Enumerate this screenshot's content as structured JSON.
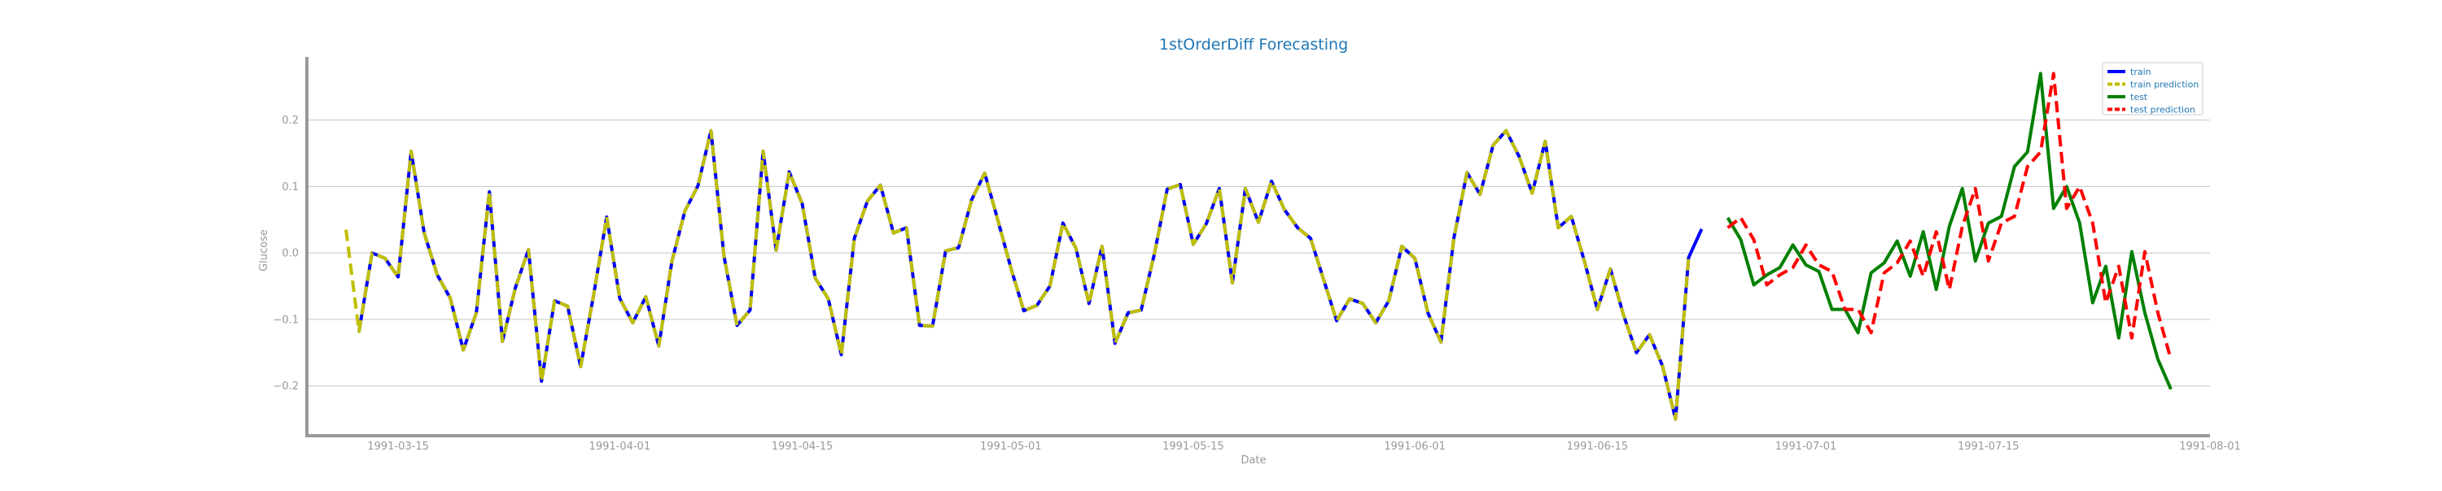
{
  "chart_data": {
    "type": "line",
    "title": "1stOrderDiff Forecasting",
    "xlabel": "Date",
    "ylabel": "Glucose",
    "xlim": [
      "1991-03-08",
      "1991-08-01"
    ],
    "ylim": [
      -0.275,
      0.295
    ],
    "grid": "horizontal",
    "legend_position": "top-right",
    "x_ticks": [
      "1991-03-15",
      "1991-04-01",
      "1991-04-15",
      "1991-05-01",
      "1991-05-15",
      "1991-06-01",
      "1991-06-15",
      "1991-07-01",
      "1991-07-15",
      "1991-08-01"
    ],
    "y_ticks": [
      -0.2,
      -0.1,
      0.0,
      0.1,
      0.2
    ],
    "y_tick_labels": [
      "−0.2",
      "−0.1",
      "0.0",
      "0.1",
      "0.2"
    ],
    "colors": {
      "train": "#0000ff",
      "train_prediction": "#bfbf00",
      "test": "#008000",
      "test_prediction": "#ff0000"
    },
    "series": [
      {
        "name": "train",
        "start": "1991-03-12",
        "values": [
          -0.118,
          0.0,
          -0.008,
          -0.036,
          0.153,
          0.03,
          -0.033,
          -0.068,
          -0.146,
          -0.09,
          0.092,
          -0.133,
          -0.052,
          0.005,
          -0.193,
          -0.072,
          -0.08,
          -0.171,
          -0.063,
          0.054,
          -0.068,
          -0.105,
          -0.066,
          -0.14,
          -0.013,
          0.063,
          0.101,
          0.184,
          -0.005,
          -0.109,
          -0.086,
          0.153,
          0.004,
          0.122,
          0.074,
          -0.038,
          -0.069,
          -0.153,
          0.022,
          0.078,
          0.102,
          0.03,
          0.038,
          -0.109,
          -0.11,
          0.003,
          0.008,
          0.08,
          0.12,
          0.05,
          -0.022,
          -0.087,
          -0.079,
          -0.05,
          0.045,
          0.007,
          -0.076,
          0.01,
          -0.136,
          -0.09,
          -0.086,
          -0.003,
          0.096,
          0.103,
          0.013,
          0.044,
          0.097,
          -0.045,
          0.097,
          0.046,
          0.108,
          0.065,
          0.038,
          0.022,
          -0.04,
          -0.102,
          -0.069,
          -0.076,
          -0.105,
          -0.072,
          0.01,
          -0.008,
          -0.09,
          -0.134,
          0.023,
          0.121,
          0.088,
          0.162,
          0.184,
          0.145,
          0.09,
          0.168,
          0.038,
          0.055,
          -0.012,
          -0.085,
          -0.024,
          -0.093,
          -0.15,
          -0.123,
          -0.17,
          -0.25,
          -0.007,
          0.036
        ]
      },
      {
        "name": "train prediction",
        "start": "1991-03-11",
        "values": [
          0.035,
          -0.118,
          0.0,
          -0.008,
          -0.036,
          0.153,
          0.03,
          -0.033,
          -0.068,
          -0.146,
          -0.09,
          0.092,
          -0.133,
          -0.052,
          0.005,
          -0.193,
          -0.072,
          -0.08,
          -0.171,
          -0.063,
          0.054,
          -0.068,
          -0.105,
          -0.066,
          -0.14,
          -0.013,
          0.063,
          0.101,
          0.184,
          -0.005,
          -0.109,
          -0.086,
          0.153,
          0.004,
          0.122,
          0.074,
          -0.038,
          -0.069,
          -0.153,
          0.022,
          0.078,
          0.102,
          0.03,
          0.038,
          -0.109,
          -0.11,
          0.003,
          0.008,
          0.08,
          0.12,
          0.05,
          -0.022,
          -0.087,
          -0.079,
          -0.05,
          0.045,
          0.007,
          -0.076,
          0.01,
          -0.136,
          -0.09,
          -0.086,
          -0.003,
          0.096,
          0.103,
          0.013,
          0.044,
          0.097,
          -0.045,
          0.097,
          0.046,
          0.108,
          0.065,
          0.038,
          0.022,
          -0.04,
          -0.102,
          -0.069,
          -0.076,
          -0.105,
          -0.072,
          0.01,
          -0.008,
          -0.09,
          -0.134,
          0.023,
          0.121,
          0.088,
          0.162,
          0.184,
          0.145,
          0.09,
          0.168,
          0.038,
          0.055,
          -0.012,
          -0.085,
          -0.024,
          -0.093,
          -0.15,
          -0.123,
          -0.17,
          -0.25,
          -0.007
        ]
      },
      {
        "name": "test",
        "start": "1991-06-25",
        "values": [
          0.053,
          0.02,
          -0.048,
          -0.033,
          -0.022,
          0.012,
          -0.018,
          -0.028,
          -0.085,
          -0.085,
          -0.12,
          -0.03,
          -0.015,
          0.018,
          -0.035,
          0.032,
          -0.055,
          0.04,
          0.097,
          -0.012,
          0.045,
          0.055,
          0.13,
          0.152,
          0.27,
          0.067,
          0.1,
          0.045,
          -0.075,
          -0.02,
          -0.128,
          0.002,
          -0.09,
          -0.16,
          -0.205
        ]
      },
      {
        "name": "test prediction",
        "start": "1991-06-25",
        "values": [
          0.038,
          0.053,
          0.02,
          -0.048,
          -0.033,
          -0.022,
          0.012,
          -0.018,
          -0.028,
          -0.085,
          -0.085,
          -0.12,
          -0.03,
          -0.015,
          0.018,
          -0.035,
          0.032,
          -0.055,
          0.04,
          0.097,
          -0.012,
          0.045,
          0.055,
          0.13,
          0.152,
          0.27,
          0.067,
          0.1,
          0.045,
          -0.075,
          -0.02,
          -0.128,
          0.002,
          -0.09,
          -0.16
        ]
      }
    ]
  }
}
